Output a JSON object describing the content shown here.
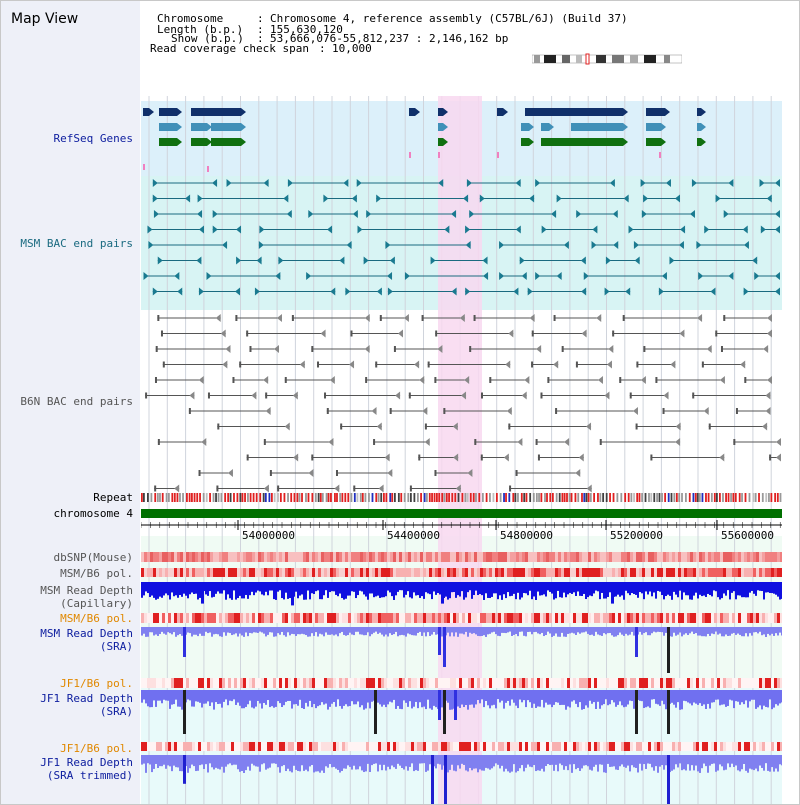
{
  "page_title": "Map View",
  "info": {
    "chromosome_key": "Chromosome",
    "chromosome_val": "Chromosome 4, reference assembly (C57BL/6J) (Build 37)",
    "length_key": "Length (b.p.)",
    "length_val": "155,630,120",
    "show_key": "Show (b.p.)",
    "show_val": "53,666,076-55,812,237 : 2,146,162 bp",
    "span_key": "Read coverage check span",
    "span_val": "10,000"
  },
  "tracks": {
    "refseq": "RefSeq Genes",
    "msm_bac": "MSM BAC end pairs",
    "b6n_bac": "B6N BAC end pairs",
    "repeat": "Repeat",
    "chromosome": "chromosome 4",
    "dbsnp": "dbSNP(Mouse)",
    "msm_b6_pol_1": "MSM/B6 pol.",
    "msm_depth_cap_1": "MSM Read Depth",
    "msm_depth_cap_2": "(Capillary)",
    "msm_b6_pol_2": "MSM/B6 pol.",
    "msm_depth_sra_1": "MSM Read Depth",
    "msm_depth_sra_2": "(SRA)",
    "jf1_b6_pol_1": "JF1/B6 pol.",
    "jf1_depth_sra_1": "JF1 Read Depth",
    "jf1_depth_sra_2": "(SRA)",
    "jf1_b6_pol_2": "JF1/B6 pol.",
    "jf1_depth_trim_1": "JF1 Read Depth",
    "jf1_depth_trim_2": "(SRA trimmed)"
  },
  "axis_ticks": [
    "54000000",
    "54400000",
    "54800000",
    "55200000",
    "55600000"
  ],
  "colors": {
    "refseq_bg": "#dcf0fa",
    "msm_bg": "#d8f4f4",
    "b6n_bg": "#ffffff",
    "highlight": "#f8d8f0",
    "chromosome": "#007000",
    "depth_blue": "#1010e0",
    "depth_light": "#8080f0",
    "pol_red": "#e02020"
  }
}
